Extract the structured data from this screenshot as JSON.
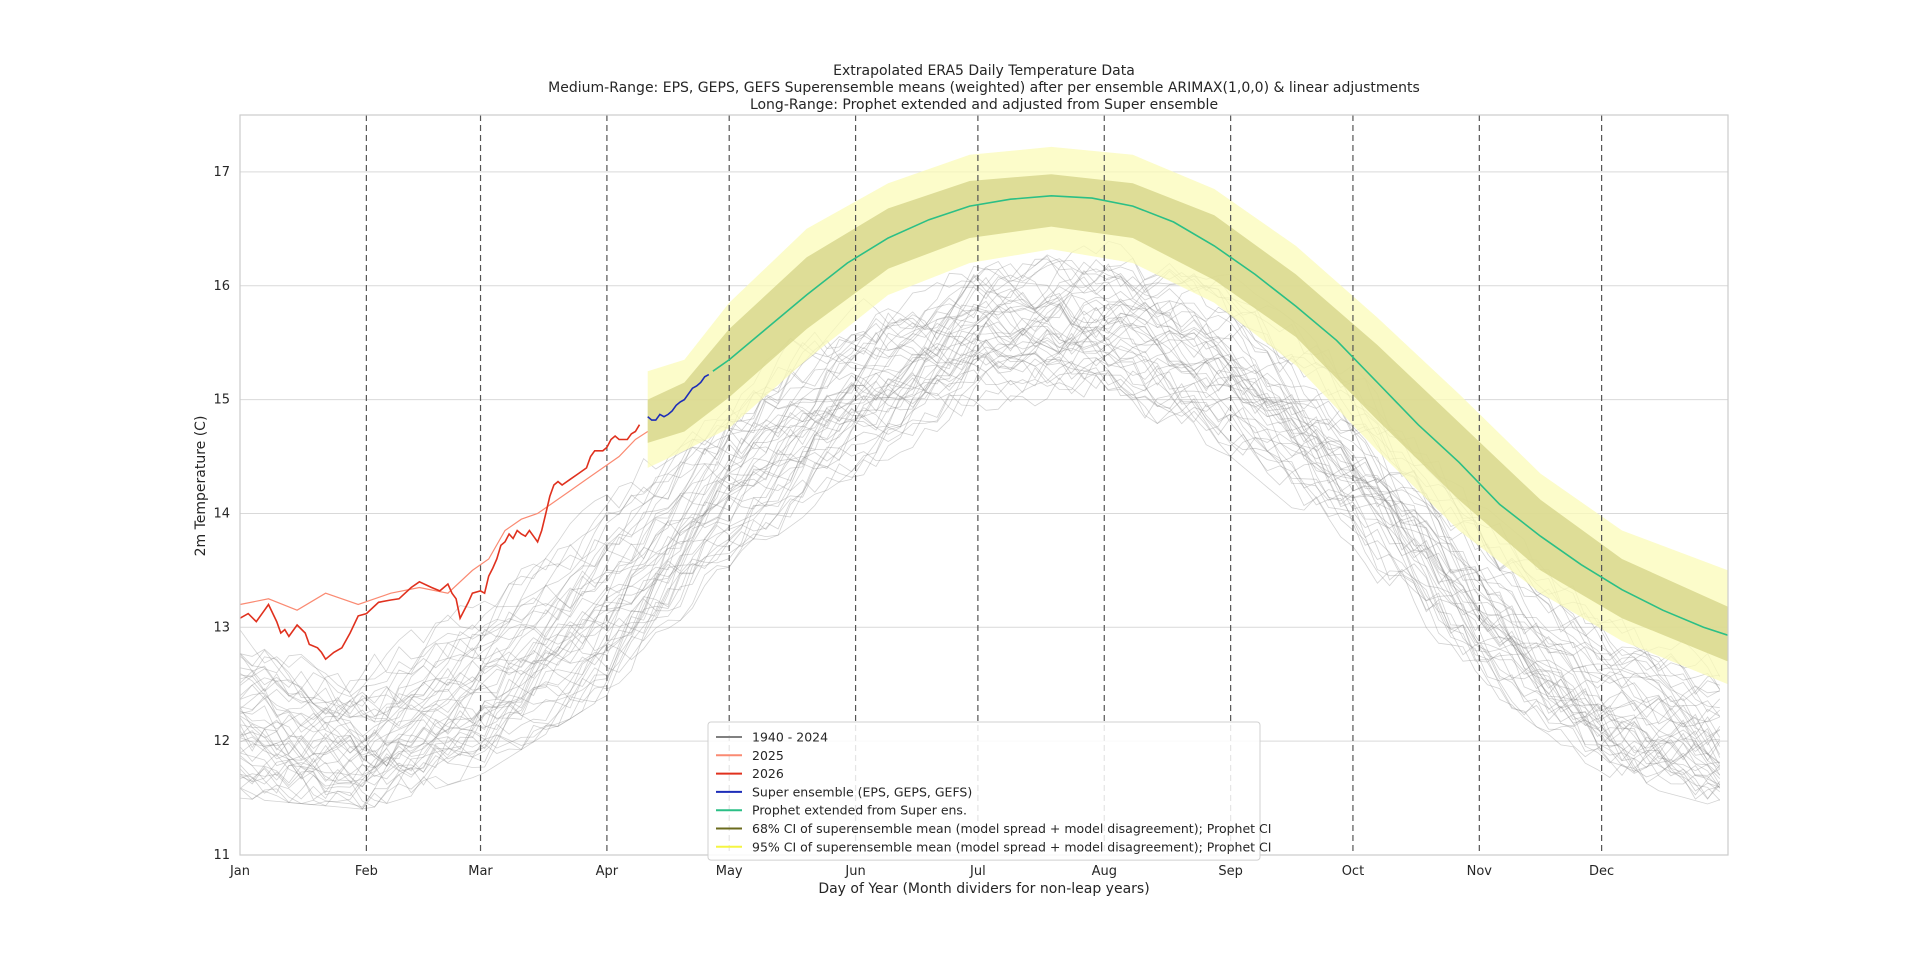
{
  "chart_data": {
    "type": "line",
    "title_lines": [
      "Extrapolated ERA5 Daily Temperature Data",
      "Medium-Range: EPS, GEPS, GEFS Superensemble means (weighted) after per ensemble ARIMAX(1,0,0) & linear adjustments",
      "Long-Range: Prophet extended and adjusted from Super ensemble"
    ],
    "xlabel": "Day of Year (Month dividers for non-leap years)",
    "ylabel": "2m Temperature (C)",
    "xlim": [
      1,
      366
    ],
    "ylim": [
      11,
      17.5
    ],
    "yticks": [
      11,
      12,
      13,
      14,
      15,
      16,
      17
    ],
    "month_ticks": [
      {
        "label": "Jan",
        "day": 1
      },
      {
        "label": "Feb",
        "day": 32
      },
      {
        "label": "Mar",
        "day": 60
      },
      {
        "label": "Apr",
        "day": 91
      },
      {
        "label": "May",
        "day": 121
      },
      {
        "label": "Jun",
        "day": 152
      },
      {
        "label": "Jul",
        "day": 182
      },
      {
        "label": "Aug",
        "day": 213
      },
      {
        "label": "Sep",
        "day": 244
      },
      {
        "label": "Oct",
        "day": 274
      },
      {
        "label": "Nov",
        "day": 305
      },
      {
        "label": "Dec",
        "day": 335
      }
    ],
    "month_dividers": [
      32,
      60,
      91,
      121,
      152,
      182,
      213,
      244,
      274,
      305,
      335
    ],
    "grid": "horizontal",
    "legend_position": "lower-center",
    "colors": {
      "historical": "#808080",
      "y2025": "#fa8a72",
      "y2026": "#e0311e",
      "super_ensemble": "#1d2db8",
      "prophet": "#2bbf86",
      "ci68": "#6b6b1e",
      "ci95": "#f5f542",
      "ci68_fill": "#d6d48a",
      "ci95_fill": "#fbfbb8",
      "divider": "#555555",
      "grid": "#d9d9d9"
    },
    "historical_envelope": {
      "label": "1940 - 2024",
      "mean": [
        {
          "x": 1,
          "y": 12.2
        },
        {
          "x": 32,
          "y": 12.0
        },
        {
          "x": 60,
          "y": 12.4
        },
        {
          "x": 91,
          "y": 13.2
        },
        {
          "x": 121,
          "y": 14.3
        },
        {
          "x": 152,
          "y": 15.1
        },
        {
          "x": 182,
          "y": 15.6
        },
        {
          "x": 213,
          "y": 15.7
        },
        {
          "x": 244,
          "y": 15.3
        },
        {
          "x": 274,
          "y": 14.5
        },
        {
          "x": 305,
          "y": 13.3
        },
        {
          "x": 335,
          "y": 12.4
        },
        {
          "x": 366,
          "y": 12.0
        }
      ],
      "min": [
        {
          "x": 1,
          "y": 11.5
        },
        {
          "x": 32,
          "y": 11.4
        },
        {
          "x": 60,
          "y": 11.7
        },
        {
          "x": 91,
          "y": 12.4
        },
        {
          "x": 121,
          "y": 13.5
        },
        {
          "x": 152,
          "y": 14.3
        },
        {
          "x": 182,
          "y": 14.9
        },
        {
          "x": 213,
          "y": 15.0
        },
        {
          "x": 244,
          "y": 14.5
        },
        {
          "x": 274,
          "y": 13.6
        },
        {
          "x": 305,
          "y": 12.5
        },
        {
          "x": 335,
          "y": 11.7
        },
        {
          "x": 366,
          "y": 11.4
        }
      ],
      "max": [
        {
          "x": 1,
          "y": 13.3
        },
        {
          "x": 32,
          "y": 13.0
        },
        {
          "x": 60,
          "y": 13.4
        },
        {
          "x": 91,
          "y": 14.3
        },
        {
          "x": 121,
          "y": 15.2
        },
        {
          "x": 152,
          "y": 15.9
        },
        {
          "x": 182,
          "y": 16.3
        },
        {
          "x": 213,
          "y": 16.4
        },
        {
          "x": 244,
          "y": 16.1
        },
        {
          "x": 274,
          "y": 15.3
        },
        {
          "x": 305,
          "y": 14.1
        },
        {
          "x": 335,
          "y": 13.2
        },
        {
          "x": 366,
          "y": 12.8
        }
      ]
    },
    "series": [
      {
        "name": "2025",
        "key": "y2025",
        "points": [
          {
            "x": 1,
            "y": 13.2
          },
          {
            "x": 8,
            "y": 13.25
          },
          {
            "x": 15,
            "y": 13.15
          },
          {
            "x": 22,
            "y": 13.3
          },
          {
            "x": 30,
            "y": 13.2
          },
          {
            "x": 38,
            "y": 13.3
          },
          {
            "x": 45,
            "y": 13.35
          },
          {
            "x": 52,
            "y": 13.3
          },
          {
            "x": 58,
            "y": 13.5
          },
          {
            "x": 62,
            "y": 13.6
          },
          {
            "x": 66,
            "y": 13.85
          },
          {
            "x": 70,
            "y": 13.95
          },
          {
            "x": 74,
            "y": 14.0
          },
          {
            "x": 78,
            "y": 14.1
          },
          {
            "x": 82,
            "y": 14.2
          },
          {
            "x": 86,
            "y": 14.3
          },
          {
            "x": 90,
            "y": 14.4
          },
          {
            "x": 94,
            "y": 14.5
          },
          {
            "x": 98,
            "y": 14.65
          },
          {
            "x": 101,
            "y": 14.72
          }
        ]
      },
      {
        "name": "2026",
        "key": "y2026",
        "points": [
          {
            "x": 1,
            "y": 13.08
          },
          {
            "x": 3,
            "y": 13.12
          },
          {
            "x": 5,
            "y": 13.05
          },
          {
            "x": 7,
            "y": 13.15
          },
          {
            "x": 8,
            "y": 13.2
          },
          {
            "x": 10,
            "y": 13.05
          },
          {
            "x": 11,
            "y": 12.95
          },
          {
            "x": 12,
            "y": 12.98
          },
          {
            "x": 13,
            "y": 12.92
          },
          {
            "x": 15,
            "y": 13.02
          },
          {
            "x": 17,
            "y": 12.95
          },
          {
            "x": 18,
            "y": 12.85
          },
          {
            "x": 20,
            "y": 12.82
          },
          {
            "x": 21,
            "y": 12.78
          },
          {
            "x": 22,
            "y": 12.72
          },
          {
            "x": 24,
            "y": 12.78
          },
          {
            "x": 26,
            "y": 12.82
          },
          {
            "x": 28,
            "y": 12.95
          },
          {
            "x": 30,
            "y": 13.1
          },
          {
            "x": 32,
            "y": 13.12
          },
          {
            "x": 35,
            "y": 13.22
          },
          {
            "x": 38,
            "y": 13.24
          },
          {
            "x": 40,
            "y": 13.25
          },
          {
            "x": 43,
            "y": 13.35
          },
          {
            "x": 45,
            "y": 13.4
          },
          {
            "x": 48,
            "y": 13.35
          },
          {
            "x": 50,
            "y": 13.32
          },
          {
            "x": 52,
            "y": 13.38
          },
          {
            "x": 53,
            "y": 13.3
          },
          {
            "x": 54,
            "y": 13.25
          },
          {
            "x": 55,
            "y": 13.08
          },
          {
            "x": 56,
            "y": 13.15
          },
          {
            "x": 57,
            "y": 13.22
          },
          {
            "x": 58,
            "y": 13.3
          },
          {
            "x": 60,
            "y": 13.32
          },
          {
            "x": 61,
            "y": 13.3
          },
          {
            "x": 62,
            "y": 13.45
          },
          {
            "x": 63,
            "y": 13.52
          },
          {
            "x": 64,
            "y": 13.6
          },
          {
            "x": 65,
            "y": 13.72
          },
          {
            "x": 66,
            "y": 13.75
          },
          {
            "x": 67,
            "y": 13.82
          },
          {
            "x": 68,
            "y": 13.78
          },
          {
            "x": 69,
            "y": 13.85
          },
          {
            "x": 70,
            "y": 13.82
          },
          {
            "x": 71,
            "y": 13.8
          },
          {
            "x": 72,
            "y": 13.85
          },
          {
            "x": 73,
            "y": 13.8
          },
          {
            "x": 74,
            "y": 13.75
          },
          {
            "x": 75,
            "y": 13.85
          },
          {
            "x": 76,
            "y": 14.0
          },
          {
            "x": 77,
            "y": 14.15
          },
          {
            "x": 78,
            "y": 14.25
          },
          {
            "x": 79,
            "y": 14.28
          },
          {
            "x": 80,
            "y": 14.25
          },
          {
            "x": 82,
            "y": 14.3
          },
          {
            "x": 84,
            "y": 14.35
          },
          {
            "x": 86,
            "y": 14.4
          },
          {
            "x": 87,
            "y": 14.5
          },
          {
            "x": 88,
            "y": 14.55
          },
          {
            "x": 90,
            "y": 14.55
          },
          {
            "x": 91,
            "y": 14.58
          },
          {
            "x": 92,
            "y": 14.65
          },
          {
            "x": 93,
            "y": 14.68
          },
          {
            "x": 94,
            "y": 14.65
          },
          {
            "x": 96,
            "y": 14.65
          },
          {
            "x": 97,
            "y": 14.7
          },
          {
            "x": 98,
            "y": 14.72
          },
          {
            "x": 99,
            "y": 14.78
          }
        ]
      },
      {
        "name": "Super ensemble (EPS, GEPS, GEFS)",
        "key": "super_ensemble",
        "points": [
          {
            "x": 101,
            "y": 14.85
          },
          {
            "x": 102,
            "y": 14.82
          },
          {
            "x": 103,
            "y": 14.82
          },
          {
            "x": 104,
            "y": 14.87
          },
          {
            "x": 105,
            "y": 14.85
          },
          {
            "x": 106,
            "y": 14.87
          },
          {
            "x": 107,
            "y": 14.9
          },
          {
            "x": 108,
            "y": 14.95
          },
          {
            "x": 109,
            "y": 14.98
          },
          {
            "x": 110,
            "y": 15.0
          },
          {
            "x": 111,
            "y": 15.05
          },
          {
            "x": 112,
            "y": 15.1
          },
          {
            "x": 113,
            "y": 15.12
          },
          {
            "x": 114,
            "y": 15.15
          },
          {
            "x": 115,
            "y": 15.2
          },
          {
            "x": 116,
            "y": 15.22
          }
        ]
      },
      {
        "name": "Prophet extended from Super ens.",
        "key": "prophet",
        "points": [
          {
            "x": 117,
            "y": 15.25
          },
          {
            "x": 121,
            "y": 15.35
          },
          {
            "x": 130,
            "y": 15.62
          },
          {
            "x": 140,
            "y": 15.92
          },
          {
            "x": 150,
            "y": 16.2
          },
          {
            "x": 160,
            "y": 16.42
          },
          {
            "x": 170,
            "y": 16.58
          },
          {
            "x": 180,
            "y": 16.7
          },
          {
            "x": 190,
            "y": 16.76
          },
          {
            "x": 200,
            "y": 16.79
          },
          {
            "x": 210,
            "y": 16.77
          },
          {
            "x": 220,
            "y": 16.7
          },
          {
            "x": 230,
            "y": 16.56
          },
          {
            "x": 240,
            "y": 16.35
          },
          {
            "x": 250,
            "y": 16.1
          },
          {
            "x": 260,
            "y": 15.82
          },
          {
            "x": 270,
            "y": 15.52
          },
          {
            "x": 280,
            "y": 15.15
          },
          {
            "x": 290,
            "y": 14.78
          },
          {
            "x": 300,
            "y": 14.45
          },
          {
            "x": 310,
            "y": 14.08
          },
          {
            "x": 320,
            "y": 13.8
          },
          {
            "x": 330,
            "y": 13.55
          },
          {
            "x": 340,
            "y": 13.33
          },
          {
            "x": 350,
            "y": 13.15
          },
          {
            "x": 360,
            "y": 13.0
          },
          {
            "x": 366,
            "y": 12.93
          }
        ]
      }
    ],
    "ci_bands": [
      {
        "name": "95% CI of superensemble mean (model spread + model disagreement); Prophet CI",
        "key": "ci95",
        "fill_key": "ci95_fill",
        "lower": [
          {
            "x": 101,
            "y": 14.4
          },
          {
            "x": 110,
            "y": 14.55
          },
          {
            "x": 121,
            "y": 14.75
          },
          {
            "x": 140,
            "y": 15.35
          },
          {
            "x": 160,
            "y": 15.92
          },
          {
            "x": 180,
            "y": 16.2
          },
          {
            "x": 200,
            "y": 16.32
          },
          {
            "x": 220,
            "y": 16.2
          },
          {
            "x": 240,
            "y": 15.85
          },
          {
            "x": 260,
            "y": 15.3
          },
          {
            "x": 280,
            "y": 14.55
          },
          {
            "x": 300,
            "y": 13.85
          },
          {
            "x": 320,
            "y": 13.3
          },
          {
            "x": 340,
            "y": 12.88
          },
          {
            "x": 366,
            "y": 12.5
          }
        ],
        "upper": [
          {
            "x": 101,
            "y": 15.25
          },
          {
            "x": 110,
            "y": 15.35
          },
          {
            "x": 121,
            "y": 15.85
          },
          {
            "x": 140,
            "y": 16.5
          },
          {
            "x": 160,
            "y": 16.9
          },
          {
            "x": 180,
            "y": 17.15
          },
          {
            "x": 200,
            "y": 17.22
          },
          {
            "x": 220,
            "y": 17.15
          },
          {
            "x": 240,
            "y": 16.85
          },
          {
            "x": 260,
            "y": 16.35
          },
          {
            "x": 280,
            "y": 15.72
          },
          {
            "x": 300,
            "y": 15.05
          },
          {
            "x": 320,
            "y": 14.35
          },
          {
            "x": 340,
            "y": 13.85
          },
          {
            "x": 366,
            "y": 13.5
          }
        ]
      },
      {
        "name": "68% CI of superensemble mean (model spread + model disagreement); Prophet CI",
        "key": "ci68",
        "fill_key": "ci68_fill",
        "lower": [
          {
            "x": 101,
            "y": 14.62
          },
          {
            "x": 110,
            "y": 14.72
          },
          {
            "x": 121,
            "y": 15.02
          },
          {
            "x": 140,
            "y": 15.62
          },
          {
            "x": 160,
            "y": 16.15
          },
          {
            "x": 180,
            "y": 16.42
          },
          {
            "x": 200,
            "y": 16.52
          },
          {
            "x": 220,
            "y": 16.42
          },
          {
            "x": 240,
            "y": 16.05
          },
          {
            "x": 260,
            "y": 15.55
          },
          {
            "x": 280,
            "y": 14.82
          },
          {
            "x": 300,
            "y": 14.12
          },
          {
            "x": 320,
            "y": 13.5
          },
          {
            "x": 340,
            "y": 13.08
          },
          {
            "x": 366,
            "y": 12.7
          }
        ],
        "upper": [
          {
            "x": 101,
            "y": 15.0
          },
          {
            "x": 110,
            "y": 15.15
          },
          {
            "x": 121,
            "y": 15.62
          },
          {
            "x": 140,
            "y": 16.25
          },
          {
            "x": 160,
            "y": 16.68
          },
          {
            "x": 180,
            "y": 16.92
          },
          {
            "x": 200,
            "y": 16.98
          },
          {
            "x": 220,
            "y": 16.9
          },
          {
            "x": 240,
            "y": 16.62
          },
          {
            "x": 260,
            "y": 16.1
          },
          {
            "x": 280,
            "y": 15.48
          },
          {
            "x": 300,
            "y": 14.8
          },
          {
            "x": 320,
            "y": 14.12
          },
          {
            "x": 340,
            "y": 13.6
          },
          {
            "x": 366,
            "y": 13.18
          }
        ]
      }
    ],
    "legend": [
      {
        "label": "1940 - 2024",
        "color_key": "historical"
      },
      {
        "label": "2025",
        "color_key": "y2025"
      },
      {
        "label": "2026",
        "color_key": "y2026"
      },
      {
        "label": "Super ensemble (EPS, GEPS, GEFS)",
        "color_key": "super_ensemble"
      },
      {
        "label": "Prophet extended from Super ens.",
        "color_key": "prophet"
      },
      {
        "label": "68% CI of superensemble mean (model spread + model disagreement); Prophet CI",
        "color_key": "ci68"
      },
      {
        "label": "95% CI of superensemble mean (model spread + model disagreement); Prophet CI",
        "color_key": "ci95"
      }
    ]
  }
}
